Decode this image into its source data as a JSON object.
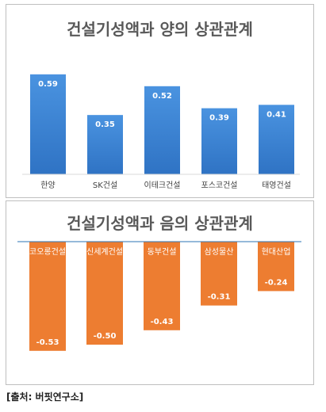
{
  "chart_data": [
    {
      "type": "bar",
      "title": "건설기성액과 양의 상관관계",
      "categories": [
        "한양",
        "SK건설",
        "이테크건설",
        "포스코건설",
        "태영건설"
      ],
      "values": [
        0.59,
        0.35,
        0.52,
        0.39,
        0.41
      ],
      "value_labels": [
        "0.59",
        "0.35",
        "0.52",
        "0.39",
        "0.41"
      ],
      "ylim": [
        0,
        0.65
      ],
      "grid": false,
      "color": "#3d86d4"
    },
    {
      "type": "bar",
      "title": "건설기성액과 음의 상관관계",
      "categories": [
        "코오롱건설",
        "신세계건설",
        "동부건설",
        "삼성물산",
        "현대산업"
      ],
      "values": [
        -0.53,
        -0.5,
        -0.43,
        -0.31,
        -0.24
      ],
      "value_labels": [
        "-0.53",
        "-0.50",
        "-0.43",
        "-0.31",
        "-0.24"
      ],
      "ylim": [
        -0.6,
        0
      ],
      "grid": false,
      "color": "#ed7d31"
    }
  ],
  "source": "[출처: 버핏연구소]"
}
